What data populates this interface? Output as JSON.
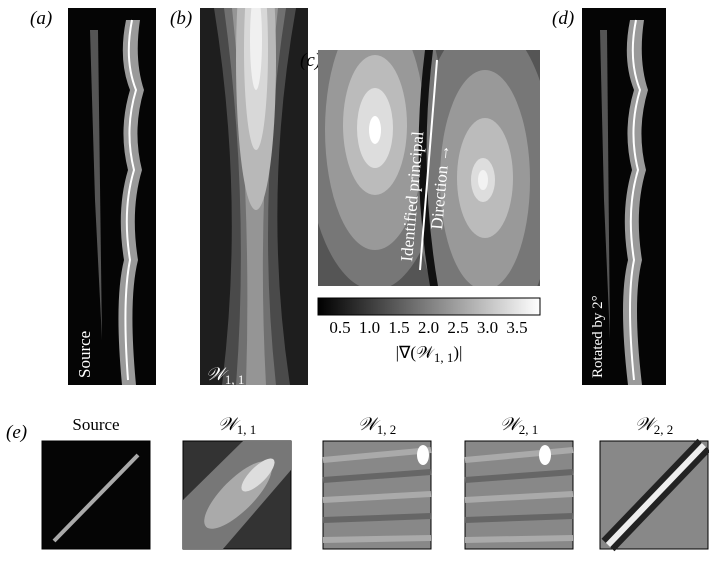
{
  "panels": {
    "a": {
      "label": "(a)",
      "caption": "Source"
    },
    "b": {
      "label": "(b)",
      "caption": {
        "symbol": "𝒲",
        "subscript": "1, 1"
      }
    },
    "c": {
      "label": "(c)",
      "annotation": [
        "Identified principal",
        "Direction →"
      ],
      "colorbar": {
        "ticks": [
          "0.5",
          "1.0",
          "1.5",
          "2.0",
          "2.5",
          "3.0",
          "3.5"
        ],
        "label": {
          "prefix": "|∇(𝒲",
          "subscript": "1, 1",
          "suffix": ")|"
        }
      }
    },
    "d": {
      "label": "(d)",
      "caption": "Rotated by 2°"
    },
    "e": {
      "label": "(e)",
      "titles": [
        "Source",
        {
          "symbol": "𝒲",
          "subscript": "1, 1"
        },
        {
          "symbol": "𝒲",
          "subscript": "1, 2"
        },
        {
          "symbol": "𝒲",
          "subscript": "2, 1"
        },
        {
          "symbol": "𝒲",
          "subscript": "2, 2"
        }
      ]
    }
  }
}
